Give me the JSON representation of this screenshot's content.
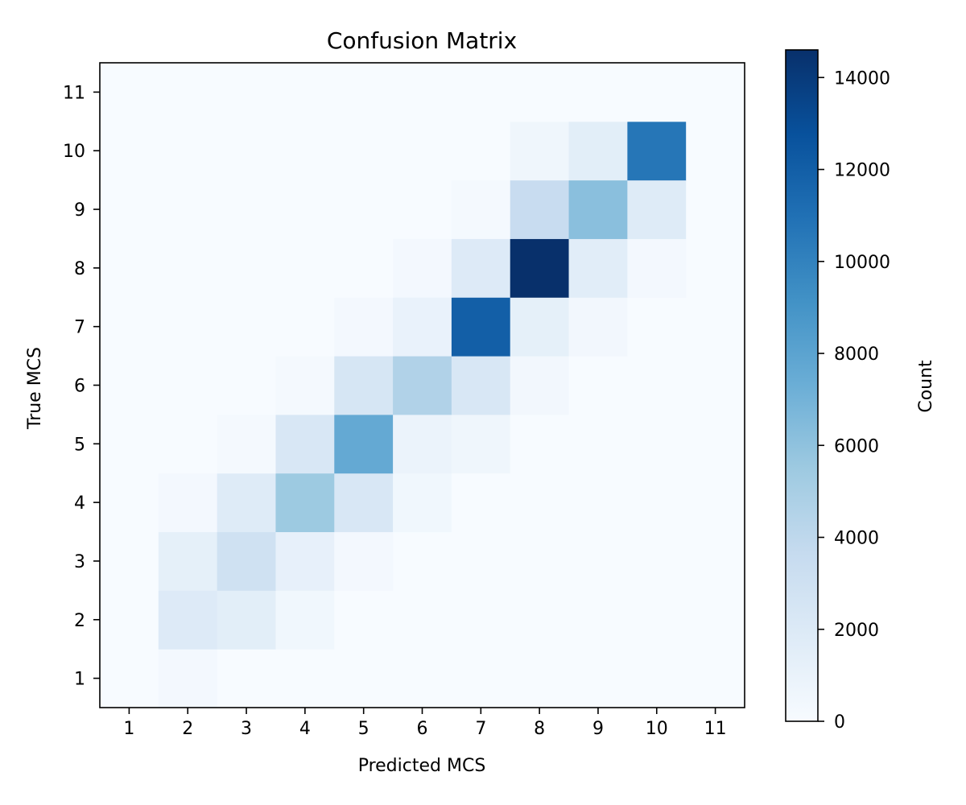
{
  "chart_data": {
    "type": "heatmap",
    "title": "Confusion Matrix",
    "xlabel": "Predicted MCS",
    "ylabel": "True MCS",
    "x_categories": [
      "1",
      "2",
      "3",
      "4",
      "5",
      "6",
      "7",
      "8",
      "9",
      "10",
      "11"
    ],
    "y_categories": [
      "1",
      "2",
      "3",
      "4",
      "5",
      "6",
      "7",
      "8",
      "9",
      "10",
      "11"
    ],
    "colorbar": {
      "label": "Count",
      "min": 0,
      "max": 14600,
      "ticks": [
        0,
        2000,
        4000,
        6000,
        8000,
        10000,
        12000,
        14000
      ],
      "colormap": "Blues"
    },
    "cells": [
      {
        "true": 1,
        "predicted": 2,
        "value": 300
      },
      {
        "true": 2,
        "predicted": 2,
        "value": 1900
      },
      {
        "true": 2,
        "predicted": 3,
        "value": 1500
      },
      {
        "true": 2,
        "predicted": 4,
        "value": 500
      },
      {
        "true": 3,
        "predicted": 2,
        "value": 1300
      },
      {
        "true": 3,
        "predicted": 3,
        "value": 3000
      },
      {
        "true": 3,
        "predicted": 4,
        "value": 1200
      },
      {
        "true": 3,
        "predicted": 5,
        "value": 300
      },
      {
        "true": 4,
        "predicted": 2,
        "value": 300
      },
      {
        "true": 4,
        "predicted": 3,
        "value": 1800
      },
      {
        "true": 4,
        "predicted": 4,
        "value": 5500
      },
      {
        "true": 4,
        "predicted": 5,
        "value": 2300
      },
      {
        "true": 4,
        "predicted": 6,
        "value": 500
      },
      {
        "true": 5,
        "predicted": 3,
        "value": 200
      },
      {
        "true": 5,
        "predicted": 4,
        "value": 2300
      },
      {
        "true": 5,
        "predicted": 5,
        "value": 7600
      },
      {
        "true": 5,
        "predicted": 6,
        "value": 900
      },
      {
        "true": 5,
        "predicted": 7,
        "value": 600
      },
      {
        "true": 6,
        "predicted": 4,
        "value": 200
      },
      {
        "true": 6,
        "predicted": 5,
        "value": 2400
      },
      {
        "true": 6,
        "predicted": 6,
        "value": 4600
      },
      {
        "true": 6,
        "predicted": 7,
        "value": 2300
      },
      {
        "true": 6,
        "predicted": 8,
        "value": 400
      },
      {
        "true": 7,
        "predicted": 5,
        "value": 300
      },
      {
        "true": 7,
        "predicted": 6,
        "value": 1000
      },
      {
        "true": 7,
        "predicted": 7,
        "value": 12000
      },
      {
        "true": 7,
        "predicted": 8,
        "value": 1300
      },
      {
        "true": 7,
        "predicted": 9,
        "value": 400
      },
      {
        "true": 8,
        "predicted": 6,
        "value": 300
      },
      {
        "true": 8,
        "predicted": 7,
        "value": 1900
      },
      {
        "true": 8,
        "predicted": 8,
        "value": 14600
      },
      {
        "true": 8,
        "predicted": 9,
        "value": 1600
      },
      {
        "true": 8,
        "predicted": 10,
        "value": 300
      },
      {
        "true": 9,
        "predicted": 7,
        "value": 200
      },
      {
        "true": 9,
        "predicted": 8,
        "value": 3500
      },
      {
        "true": 9,
        "predicted": 9,
        "value": 6200
      },
      {
        "true": 9,
        "predicted": 10,
        "value": 1800
      },
      {
        "true": 10,
        "predicted": 8,
        "value": 600
      },
      {
        "true": 10,
        "predicted": 9,
        "value": 1500
      },
      {
        "true": 10,
        "predicted": 10,
        "value": 10700
      }
    ]
  }
}
